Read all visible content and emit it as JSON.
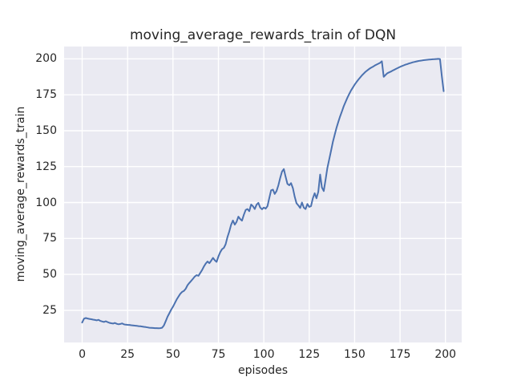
{
  "figure": {
    "background": "#ffffff"
  },
  "chart_data": {
    "type": "line",
    "title": "moving_average_rewards_train of DQN",
    "xlabel": "episodes",
    "ylabel": "moving_average_rewards_train",
    "x_ticks": [
      0,
      25,
      50,
      75,
      100,
      125,
      150,
      175,
      200
    ],
    "y_ticks": [
      25,
      50,
      75,
      100,
      125,
      150,
      175,
      200
    ],
    "xlim": [
      -9.95,
      208.95
    ],
    "ylim": [
      2.6,
      208.6
    ],
    "grid": true,
    "legend": "none",
    "plot_bg": "#eaeaf2",
    "grid_color": "#ffffff",
    "text_color": "#262626",
    "line_color": "#4c72b0",
    "line_width": 2,
    "series": [
      {
        "name": "moving_average_rewards_train",
        "x": [
          0,
          1,
          2,
          3,
          4,
          5,
          6,
          7,
          8,
          9,
          10,
          11,
          12,
          13,
          14,
          15,
          16,
          17,
          18,
          19,
          20,
          21,
          22,
          23,
          24,
          25,
          26,
          27,
          28,
          29,
          30,
          31,
          32,
          33,
          34,
          35,
          36,
          37,
          38,
          39,
          40,
          41,
          42,
          43,
          44,
          45,
          46,
          47,
          48,
          49,
          50,
          51,
          52,
          53,
          54,
          55,
          56,
          57,
          58,
          59,
          60,
          61,
          62,
          63,
          64,
          65,
          66,
          67,
          68,
          69,
          70,
          71,
          72,
          73,
          74,
          75,
          76,
          77,
          78,
          79,
          80,
          81,
          82,
          83,
          84,
          85,
          86,
          87,
          88,
          89,
          90,
          91,
          92,
          93,
          94,
          95,
          96,
          97,
          98,
          99,
          100,
          101,
          102,
          103,
          104,
          105,
          106,
          107,
          108,
          109,
          110,
          111,
          112,
          113,
          114,
          115,
          116,
          117,
          118,
          119,
          120,
          121,
          122,
          123,
          124,
          125,
          126,
          127,
          128,
          129,
          130,
          131,
          132,
          133,
          134,
          135,
          136,
          137,
          138,
          139,
          140,
          141,
          142,
          143,
          144,
          145,
          146,
          147,
          148,
          149,
          150,
          151,
          152,
          153,
          154,
          155,
          156,
          157,
          158,
          159,
          160,
          161,
          162,
          163,
          164,
          165,
          166,
          167,
          168,
          169,
          170,
          171,
          172,
          173,
          174,
          175,
          176,
          177,
          178,
          179,
          180,
          181,
          182,
          183,
          184,
          185,
          186,
          187,
          188,
          189,
          190,
          191,
          192,
          193,
          194,
          195,
          196,
          197,
          198,
          199
        ],
        "y": [
          16.5,
          19.2,
          19.6,
          19.3,
          19.0,
          18.8,
          18.5,
          18.3,
          18.0,
          18.4,
          17.6,
          17.2,
          16.9,
          17.4,
          16.8,
          16.3,
          16.0,
          15.8,
          16.2,
          15.6,
          15.3,
          15.5,
          15.9,
          15.2,
          15.0,
          14.9,
          14.8,
          14.6,
          14.5,
          14.3,
          14.2,
          14.0,
          13.9,
          13.7,
          13.5,
          13.3,
          13.1,
          12.9,
          12.8,
          12.7,
          12.6,
          12.6,
          12.5,
          12.6,
          12.9,
          14.5,
          17.5,
          20.5,
          23.0,
          25.5,
          27.5,
          30.0,
          32.5,
          34.5,
          36.5,
          37.8,
          38.5,
          40.0,
          42.5,
          44.0,
          45.5,
          47.0,
          48.5,
          49.5,
          49.0,
          51.0,
          53.0,
          55.5,
          57.5,
          59.0,
          57.8,
          59.5,
          61.5,
          59.8,
          58.7,
          62.5,
          65.5,
          67.5,
          68.5,
          71.0,
          76.0,
          80.0,
          84.5,
          87.5,
          84.6,
          86.5,
          90.2,
          88.5,
          87.4,
          91.5,
          94.8,
          95.5,
          94.0,
          98.6,
          97.5,
          95.5,
          98.5,
          99.8,
          96.5,
          95.3,
          96.5,
          95.8,
          97.5,
          103.0,
          108.5,
          109.0,
          106.0,
          108.0,
          112.0,
          117.0,
          121.5,
          123.3,
          118.0,
          113.0,
          112.0,
          113.5,
          110.0,
          104.0,
          99.5,
          98.0,
          96.2,
          100.0,
          96.5,
          95.5,
          99.0,
          97.0,
          97.5,
          103.0,
          106.5,
          103.0,
          107.5,
          119.5,
          110.5,
          108.0,
          116.0,
          124.0,
          130.0,
          136.0,
          142.0,
          147.0,
          152.0,
          156.0,
          160.0,
          163.5,
          167.0,
          170.0,
          173.0,
          175.5,
          178.0,
          180.0,
          182.0,
          183.8,
          185.5,
          187.0,
          188.5,
          189.8,
          191.0,
          192.0,
          193.0,
          193.8,
          194.5,
          195.3,
          196.0,
          196.6,
          197.2,
          198.3,
          187.5,
          188.8,
          190.0,
          190.6,
          191.2,
          191.9,
          192.5,
          193.2,
          193.8,
          194.4,
          195.0,
          195.5,
          196.0,
          196.4,
          196.8,
          197.2,
          197.6,
          197.9,
          198.2,
          198.5,
          198.7,
          198.9,
          199.1,
          199.3,
          199.4,
          199.5,
          199.6,
          199.7,
          199.8,
          199.9,
          200.0,
          199.9,
          188.0,
          177.5
        ]
      }
    ]
  }
}
